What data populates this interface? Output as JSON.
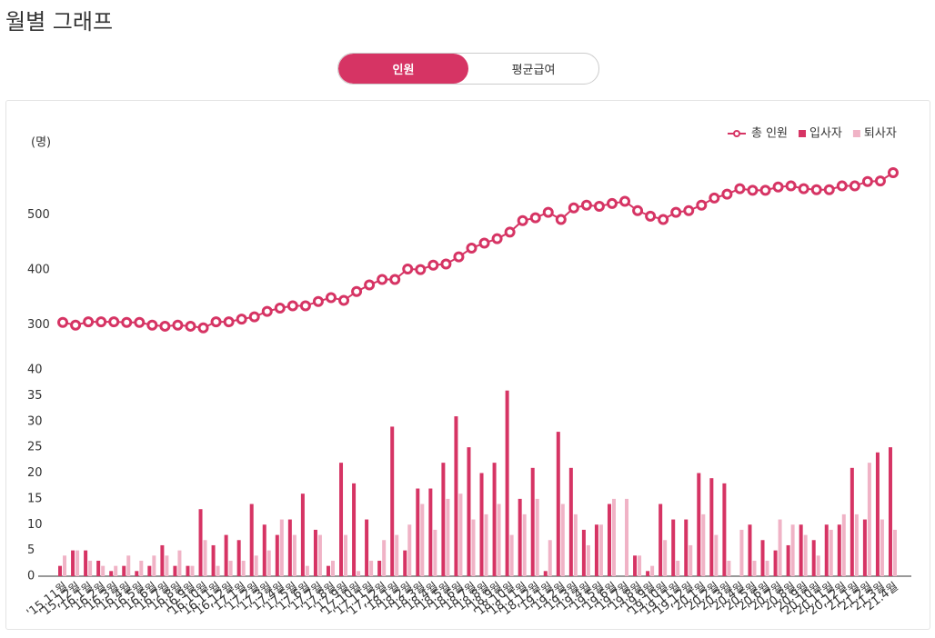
{
  "page_title": "월별 그래프",
  "tabs": [
    {
      "label": "인원",
      "active": true
    },
    {
      "label": "평균급여",
      "active": false
    }
  ],
  "chart_data": {
    "type": "combo",
    "y_label": "(명)",
    "categories": [
      "'15.11월",
      "'15.12월",
      "'16.1월",
      "'16.2월",
      "'16.3월",
      "'16.4월",
      "'16.5월",
      "'16.6월",
      "'16.7월",
      "'16.8월",
      "'16.9월",
      "'16.10월",
      "'16.11월",
      "'16.12월",
      "'17.1월",
      "'17.2월",
      "'17.3월",
      "'17.4월",
      "'17.5월",
      "'17.6월",
      "'17.7월",
      "'17.8월",
      "'17.9월",
      "'17.10월",
      "'17.11월",
      "'17.12월",
      "'18.1월",
      "'18.2월",
      "'18.3월",
      "'18.4월",
      "'18.5월",
      "'18.6월",
      "'18.7월",
      "'18.8월",
      "'18.9월",
      "'18.10월",
      "'18.11월",
      "'18.12월",
      "'19.1월",
      "'19.2월",
      "'19.3월",
      "'19.4월",
      "'19.5월",
      "'19.6월",
      "'19.7월",
      "'19.8월",
      "'19.9월",
      "'19.10월",
      "'19.11월",
      "'19.12월",
      "'20.1월",
      "'20.2월",
      "'20.3월",
      "'20.4월",
      "'20.5월",
      "'20.6월",
      "'20.7월",
      "'20.8월",
      "'20.9월",
      "'20.10월",
      "'20.11월",
      "'20.12월",
      "'21.1월",
      "'21.2월",
      "'21.3월",
      "'21.4월"
    ],
    "series": [
      {
        "name": "총 인원",
        "type": "line",
        "axis": "y",
        "color": "#d63464",
        "values": [
          305,
          300,
          306,
          306,
          306,
          305,
          305,
          300,
          298,
          300,
          298,
          295,
          306,
          306,
          311,
          315,
          325,
          331,
          335,
          335,
          343,
          350,
          345,
          361,
          373,
          383,
          383,
          402,
          401,
          409,
          411,
          424,
          440,
          449,
          457,
          469,
          490,
          495,
          505,
          492,
          513,
          518,
          516,
          521,
          525,
          508,
          498,
          492,
          505,
          508,
          518,
          531,
          538,
          548,
          545,
          545,
          551,
          553,
          548,
          546,
          546,
          553,
          553,
          561,
          562,
          577
        ]
      },
      {
        "name": "입사자",
        "type": "bar",
        "axis": "y2",
        "color": "#d63464",
        "values": [
          2,
          5,
          5,
          3,
          1,
          2,
          1,
          2,
          6,
          2,
          2,
          13,
          6,
          8,
          7,
          14,
          10,
          8,
          11,
          16,
          9,
          2,
          22,
          18,
          11,
          3,
          29,
          5,
          17,
          17,
          22,
          31,
          25,
          20,
          22,
          36,
          15,
          21,
          1,
          28,
          21,
          9,
          10,
          14,
          0,
          4,
          1,
          14,
          11,
          11,
          20,
          19,
          18,
          0,
          10,
          7,
          5,
          6,
          10,
          7,
          10,
          10,
          21,
          11,
          24,
          25
        ]
      },
      {
        "name": "퇴사자",
        "type": "bar",
        "axis": "y2",
        "color": "#f0b3c6",
        "values": [
          4,
          5,
          3,
          2,
          2,
          4,
          3,
          4,
          4,
          5,
          2,
          7,
          2,
          3,
          3,
          4,
          5,
          11,
          8,
          2,
          8,
          3,
          8,
          1,
          3,
          7,
          8,
          10,
          14,
          9,
          15,
          16,
          11,
          12,
          14,
          8,
          12,
          15,
          7,
          14,
          12,
          6,
          10,
          15,
          15,
          4,
          2,
          7,
          3,
          6,
          12,
          8,
          3,
          9,
          3,
          3,
          11,
          10,
          8,
          4,
          9,
          12,
          12,
          22,
          11,
          9
        ]
      }
    ],
    "ylim": [
      250,
      620
    ],
    "yticks": [
      300,
      400,
      500
    ],
    "y2lim": [
      0,
      40
    ],
    "y2ticks": [
      0,
      5,
      10,
      15,
      20,
      25,
      30,
      35,
      40
    ],
    "legend": "top-right"
  }
}
